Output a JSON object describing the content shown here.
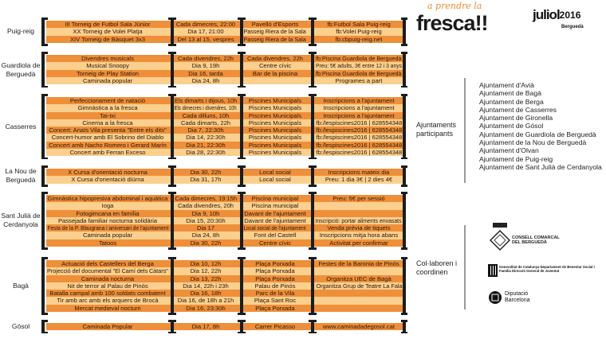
{
  "header": {
    "logo_top": "a prendre la",
    "logo_main": "fresca!!",
    "month": "juliol",
    "year": "2016",
    "region": "Berguedà"
  },
  "groups": [
    {
      "town": "Puig-reig",
      "rows": [
        [
          "III Torneig de Futbol Sala Júnior",
          "Cada dimecres, 22:00",
          "Pavelló d'Esports",
          "fb:Futbol Sala Puig-reig"
        ],
        [
          "XX Torneig de Volei Platja",
          "Dia 17, 21:00",
          "Passeig Riera de la Sala",
          "fb:Volei Puig-reig"
        ],
        [
          "XIV Torneig de Bàsquet 3x3",
          "Del 13 al 15, vespres",
          "Passeig Riera de la Sala",
          "fb:cbpuig-reig.net"
        ]
      ]
    },
    {
      "town": "Guardiola de Berguedà",
      "rows": [
        [
          "Divendres musicals",
          "Cada divendres, 22h",
          "Cada divendres, 22h",
          "fb:Piscina Guardiola de Berguedà"
        ],
        [
          "Musical Snoopy",
          "Dia 9, 19h",
          "Centre cívic",
          "Preu: 5€ adults, 3€ entre 12 i 3 anys"
        ],
        [
          "Torneig de Play Station",
          "Dia 16, tarda",
          "Bar de la piscina",
          "fb:Piscina Guardiola de Berguedà"
        ],
        [
          "Caminada popular",
          "Dia 24, 8h",
          "",
          "Programes a part"
        ]
      ]
    },
    {
      "town": "Casserres",
      "rows": [
        [
          "Perfeccionament de natació",
          "Els dimarts i dijous, 10h",
          "Piscines Municipals",
          "Inscripcions a l'ajuntament"
        ],
        [
          "Gimnàstica a la fresca",
          "Els dimecres i divendres, 10h",
          "Piscines Municipals",
          "Inscripcions a l'ajuntament"
        ],
        [
          "Tai-txi",
          "Cada dilluns, 10h",
          "Piscines Municipals",
          "Inscripcions a l'ajuntament"
        ],
        [
          "Cinema a la fresca",
          "Cada dimarts, 22h",
          "Piscines Municipals",
          "fb:/lespiscines2016 | 628554348"
        ],
        [
          "Concert: Anaïs Vila presenta \"Entre els dits\"",
          "Dia 7, 22:30h",
          "Piscines Municipals",
          "fb:/lespiscines2016 | 628554348"
        ],
        [
          "Concert-humor amb El Sobrino del Diablo",
          "Dia 14, 22:30h",
          "Piscines Municipals",
          "fb:/lespiscines2016 | 628554348"
        ],
        [
          "Concert amb Nacho Romero i Gerard Marín",
          "Dia 21, 22:30h",
          "Piscines Municipals",
          "fb:/lespiscines2016 | 628554348"
        ],
        [
          "Concert amb Ferran Exceso",
          "Dia 28, 22:30h",
          "Piscines Municipals",
          "fb:/lespiscines2016 | 628554348"
        ]
      ]
    },
    {
      "town": "La Nou de Berguedà",
      "rows": [
        [
          "X Cursa d'orientació nocturna",
          "Dia 30, 22h",
          "Local social",
          "Inscripcions mateix dia"
        ],
        [
          "X Cursa d'orientació diürna",
          "Dia 31, 17h",
          "Local social",
          "Preu: 1 dia 3€ | 2 dies 4€"
        ]
      ]
    },
    {
      "town": "Sant Julià de Cerdanyola",
      "rows": [
        [
          "Gimnàstica hipopresiva abdominal i aquàtica",
          "Cada dimecres, 19:15h",
          "Piscina municipal",
          "Preu: 5€ per sessió"
        ],
        [
          "Ioga",
          "Cada divendres, 20h",
          "Piscina municipal",
          ""
        ],
        [
          "Fotogimcana en família",
          "Dia 9, 10h",
          "Davant de l'ajuntament",
          ""
        ],
        [
          "Passejada familiar nocturna solidària",
          "Dia 15, 20:30h",
          "Davant de l'ajuntament",
          "Inscripció: portar aliments envasats"
        ],
        [
          "Festa de la P. Blaugrana i aniversari de l'ajuntament",
          "Dia 17",
          "Local social de l'ajuntament",
          "Venda prèvia de tiquets"
        ],
        [
          "Caminada popular",
          "Dia 24, 8h",
          "Font del Castell",
          "Inscripcions mitja hora abans"
        ],
        [
          "Tatoos",
          "Dia 30, 22h",
          "Centre cívic",
          "Activitat per confirmar"
        ]
      ]
    },
    {
      "town": "Bagà",
      "rows": [
        [
          "Actuació dels Castellers del Berga",
          "Dia 10, 12h",
          "Plaça Porxada",
          "Festes de la Baronia de Pinós"
        ],
        [
          "Projecció del documental \"El Camí dels Càtars\"",
          "Dia 12, 22h",
          "Plaça Porxada",
          ""
        ],
        [
          "Caminada nocturna",
          "Dia 13, 22h",
          "Plaça Porxada",
          "Organitza UEC de Bagà"
        ],
        [
          "Nit de terror al Palau de Pinós",
          "Dia 14, 22h i 23h",
          "Palau de Pinós",
          "Organitza Grup de Teatre La Fala"
        ],
        [
          "Batalla campal amb 100 soldats combatent",
          "Dia 16, 18h",
          "Parc de la Vila",
          ""
        ],
        [
          "Tir amb arc amb els arquers de Brocà",
          "Dia 16, de 18h a 21h",
          "Plaça Sant Roc",
          ""
        ],
        [
          "Mercat medieval nocturn",
          "Dia 16, 23:30h",
          "Plaça Porxada",
          ""
        ]
      ]
    },
    {
      "town": "Gósol",
      "rows": [
        [
          "Caminada Popular",
          "Dia 17, 8h",
          "Carrer Picasso",
          "www.caminadadegosol.cat"
        ]
      ]
    }
  ],
  "participants": {
    "label": "Ajuntaments participants",
    "items": [
      "Ajuntament d'Avià",
      "Ajuntament de Bagà",
      "Ajuntament de Berga",
      "Ajuntament de Casserres",
      "Ajuntament de Gironella",
      "Ajuntament de Gósol",
      "Ajuntament de Guardiola de Berguedà",
      "Ajuntament de la Nou de Berguedà",
      "Ajuntament d'Olvan",
      "Ajuntament de Puig-reig",
      "Ajuntament de Sant Julià de Cerdanyola"
    ]
  },
  "collaborators": {
    "label": "Col·laboren i coordinen",
    "consell": "CONSELL COMARCAL DEL BERGUEDÀ",
    "generalitat": "Generalitat de Catalunya Departament de Benestar Social i Família Direcció General de Joventut",
    "diputacio": "Diputació Barcelona"
  },
  "colors": {
    "dark_row": "#ef8f3a",
    "light_row": "#fbcf8e",
    "bracket": "#1c1c1c"
  }
}
